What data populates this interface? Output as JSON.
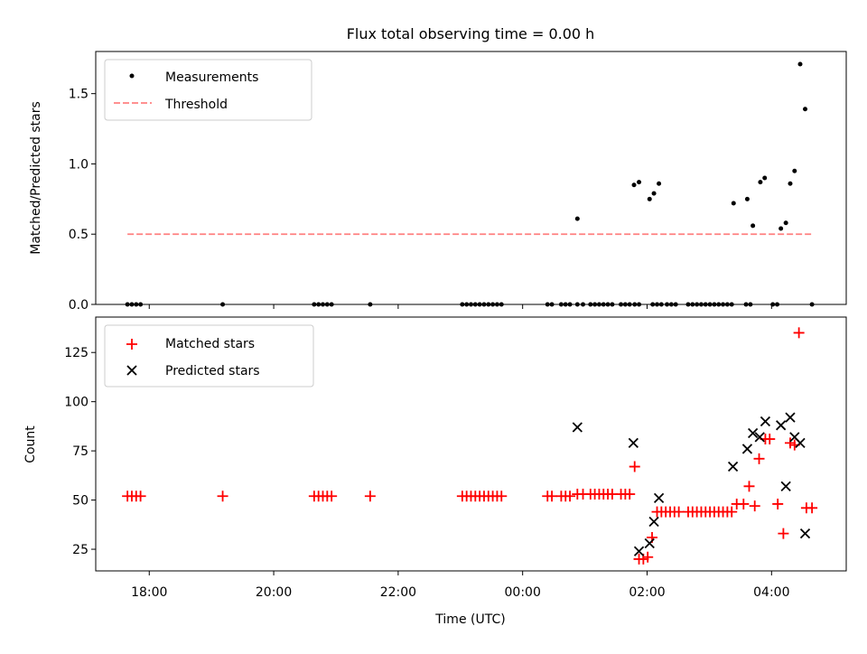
{
  "chart_data": [
    {
      "type": "scatter",
      "title": "Flux total observing time = 0.00 h",
      "xlabel": "",
      "ylabel": "Matched/Predicted stars",
      "xlim": [
        -6.86,
        5.2
      ],
      "ylim": [
        0,
        1.8
      ],
      "yticks": [
        0.0,
        0.5,
        1.0,
        1.5
      ],
      "ytick_labels": [
        "0.0",
        "0.5",
        "1.0",
        "1.5"
      ],
      "legend_position": "upper-left",
      "series": [
        {
          "name": "Measurements",
          "kind": "points",
          "color": "#000000",
          "x": [
            -6.35,
            -6.28,
            -6.21,
            -6.14,
            -4.82,
            -3.35,
            -3.28,
            -3.21,
            -3.14,
            -3.07,
            -2.45,
            -0.97,
            -0.9,
            -0.83,
            -0.76,
            -0.69,
            -0.62,
            -0.55,
            -0.48,
            -0.41,
            -0.34,
            0.4,
            0.47,
            0.62,
            0.69,
            0.76,
            0.88,
            0.97,
            1.09,
            1.16,
            1.23,
            1.3,
            1.37,
            1.44,
            1.58,
            1.65,
            1.72,
            1.8,
            1.87,
            2.09,
            2.16,
            2.23,
            2.32,
            2.39,
            2.46,
            2.66,
            2.73,
            2.8,
            2.87,
            2.94,
            3.01,
            3.08,
            3.15,
            3.22,
            3.29,
            3.36,
            3.59,
            3.66,
            4.02,
            4.09,
            4.65,
            0.88,
            1.79,
            1.87,
            2.04,
            2.11,
            2.19,
            3.39,
            3.61,
            3.7,
            3.82,
            3.89,
            4.15,
            4.23,
            4.3,
            4.37,
            4.46,
            4.54
          ],
          "y": [
            0,
            0,
            0,
            0,
            0,
            0,
            0,
            0,
            0,
            0,
            0,
            0,
            0,
            0,
            0,
            0,
            0,
            0,
            0,
            0,
            0,
            0,
            0,
            0,
            0,
            0,
            0,
            0,
            0,
            0,
            0,
            0,
            0,
            0,
            0,
            0,
            0,
            0,
            0,
            0,
            0,
            0,
            0,
            0,
            0,
            0,
            0,
            0,
            0,
            0,
            0,
            0,
            0,
            0,
            0,
            0,
            0,
            0,
            0,
            0,
            0,
            0.61,
            0.85,
            0.87,
            0.75,
            0.79,
            0.86,
            0.72,
            0.75,
            0.56,
            0.87,
            0.9,
            0.54,
            0.58,
            0.86,
            0.95,
            1.71,
            1.39
          ]
        },
        {
          "name": "Threshold",
          "kind": "dashed-line",
          "color": "#ff8080",
          "x": [
            -6.35,
            4.65
          ],
          "y": [
            0.5,
            0.5
          ]
        }
      ]
    },
    {
      "type": "scatter",
      "title": "",
      "xlabel": "Time (UTC)",
      "ylabel": "Count",
      "xlim": [
        -6.86,
        5.2
      ],
      "ylim": [
        14,
        143
      ],
      "yticks": [
        25,
        50,
        75,
        100,
        125
      ],
      "ytick_labels": [
        "25",
        "50",
        "75",
        "100",
        "125"
      ],
      "xticks": [
        -6,
        -4,
        -2,
        0,
        2,
        4
      ],
      "xtick_labels": [
        "18:00",
        "20:00",
        "22:00",
        "00:00",
        "02:00",
        "04:00"
      ],
      "legend_position": "upper-left",
      "series": [
        {
          "name": "Matched stars",
          "kind": "plus",
          "color": "#ff0000",
          "x": [
            -6.35,
            -6.28,
            -6.21,
            -6.14,
            -4.82,
            -3.35,
            -3.28,
            -3.21,
            -3.14,
            -3.07,
            -2.45,
            -0.97,
            -0.9,
            -0.83,
            -0.76,
            -0.69,
            -0.62,
            -0.55,
            -0.48,
            -0.41,
            -0.34,
            0.4,
            0.47,
            0.62,
            0.69,
            0.76,
            0.88,
            0.97,
            1.09,
            1.16,
            1.23,
            1.3,
            1.37,
            1.44,
            1.58,
            1.65,
            1.72,
            1.8,
            1.87,
            1.94,
            2.01,
            2.08,
            2.16,
            2.23,
            2.3,
            2.37,
            2.44,
            2.51,
            2.66,
            2.73,
            2.8,
            2.87,
            2.94,
            3.01,
            3.08,
            3.15,
            3.22,
            3.29,
            3.36,
            3.44,
            3.55,
            3.64,
            3.73,
            3.8,
            3.9,
            3.97,
            4.1,
            4.19,
            4.3,
            4.37,
            4.44,
            4.56,
            4.65
          ],
          "y": [
            52,
            52,
            52,
            52,
            52,
            52,
            52,
            52,
            52,
            52,
            52,
            52,
            52,
            52,
            52,
            52,
            52,
            52,
            52,
            52,
            52,
            52,
            52,
            52,
            52,
            52,
            53,
            53,
            53,
            53,
            53,
            53,
            53,
            53,
            53,
            53,
            53,
            67,
            20,
            20,
            21,
            31,
            44,
            44,
            44,
            44,
            44,
            44,
            44,
            44,
            44,
            44,
            44,
            44,
            44,
            44,
            44,
            44,
            44,
            48,
            48,
            57,
            47,
            71,
            81,
            81,
            48,
            33,
            79,
            78,
            135,
            46,
            46
          ]
        },
        {
          "name": "Predicted stars",
          "kind": "cross",
          "color": "#000000",
          "x": [
            0.88,
            1.78,
            1.87,
            2.04,
            2.11,
            2.19,
            3.38,
            3.61,
            3.7,
            3.81,
            3.9,
            4.15,
            4.23,
            4.3,
            4.37,
            4.46,
            4.54
          ],
          "y": [
            87,
            79,
            24,
            28,
            39,
            51,
            67,
            76,
            84,
            82,
            90,
            88,
            57,
            92,
            82,
            79,
            33
          ]
        }
      ]
    }
  ]
}
